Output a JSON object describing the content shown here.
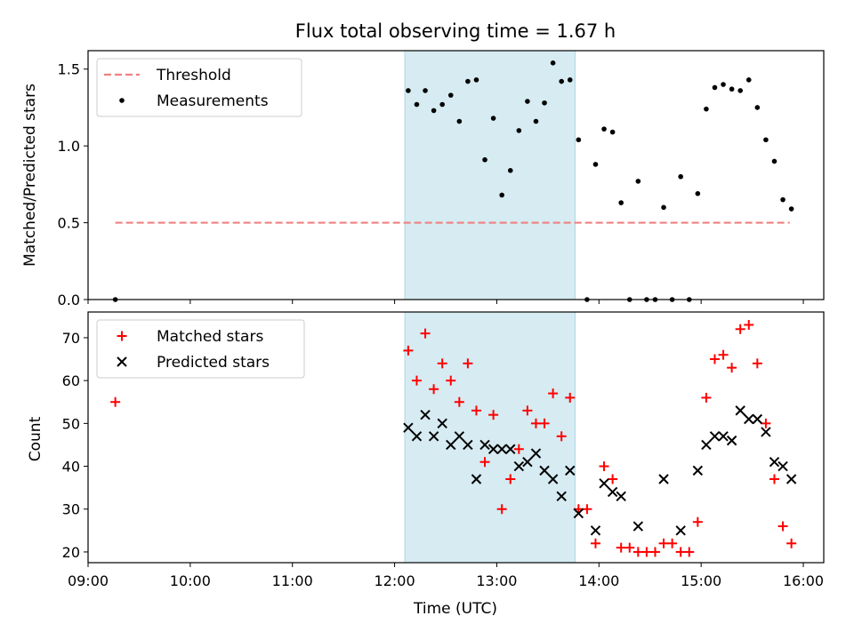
{
  "figure": {
    "title": "Flux total observing time = 1.67 h"
  },
  "colors": {
    "threshold": "#f08080",
    "measurement": "#000000",
    "matched": "#ff0000",
    "predicted": "#000000",
    "shade": "#add8e6"
  },
  "chart_data": [
    {
      "type": "scatter",
      "ylabel": "Matched/Predicted stars",
      "xlabel": "",
      "ylim": [
        0,
        1.62
      ],
      "yticks": [
        0.0,
        0.5,
        1.0,
        1.5
      ],
      "ytick_labels": [
        "0.0",
        "0.5",
        "1.0",
        "1.5"
      ],
      "legend": {
        "placement": "top-left",
        "entries": [
          "Threshold",
          "Measurements"
        ]
      },
      "shaded_interval": [
        "12:06",
        "13:46"
      ],
      "threshold": {
        "name": "Threshold",
        "y": 0.5,
        "x_start": "09:16",
        "x_end": "15:52",
        "style": "dashed"
      },
      "series": [
        {
          "name": "Measurements",
          "marker": "dot",
          "points": [
            [
              "09:16",
              0.0
            ],
            [
              "12:08",
              1.36
            ],
            [
              "12:13",
              1.27
            ],
            [
              "12:18",
              1.36
            ],
            [
              "12:23",
              1.23
            ],
            [
              "12:28",
              1.27
            ],
            [
              "12:33",
              1.33
            ],
            [
              "12:38",
              1.16
            ],
            [
              "12:43",
              1.42
            ],
            [
              "12:48",
              1.43
            ],
            [
              "12:53",
              0.91
            ],
            [
              "12:58",
              1.18
            ],
            [
              "13:03",
              0.68
            ],
            [
              "13:08",
              0.84
            ],
            [
              "13:13",
              1.1
            ],
            [
              "13:18",
              1.29
            ],
            [
              "13:23",
              1.16
            ],
            [
              "13:28",
              1.28
            ],
            [
              "13:33",
              1.54
            ],
            [
              "13:38",
              1.42
            ],
            [
              "13:43",
              1.43
            ],
            [
              "13:48",
              1.04
            ],
            [
              "13:53",
              0.0
            ],
            [
              "13:58",
              0.88
            ],
            [
              "14:03",
              1.11
            ],
            [
              "14:08",
              1.09
            ],
            [
              "14:13",
              0.63
            ],
            [
              "14:18",
              0.0
            ],
            [
              "14:23",
              0.77
            ],
            [
              "14:28",
              0.0
            ],
            [
              "14:33",
              0.0
            ],
            [
              "14:38",
              0.6
            ],
            [
              "14:43",
              0.0
            ],
            [
              "14:48",
              0.8
            ],
            [
              "14:53",
              0.0
            ],
            [
              "14:58",
              0.69
            ],
            [
              "15:03",
              1.24
            ],
            [
              "15:08",
              1.38
            ],
            [
              "15:13",
              1.4
            ],
            [
              "15:18",
              1.37
            ],
            [
              "15:23",
              1.36
            ],
            [
              "15:28",
              1.43
            ],
            [
              "15:33",
              1.25
            ],
            [
              "15:38",
              1.04
            ],
            [
              "15:43",
              0.9
            ],
            [
              "15:48",
              0.65
            ],
            [
              "15:53",
              0.59
            ]
          ]
        }
      ]
    },
    {
      "type": "scatter",
      "ylabel": "Count",
      "xlabel": "Time (UTC)",
      "ylim": [
        17.5,
        76
      ],
      "yticks": [
        20,
        30,
        40,
        50,
        60,
        70
      ],
      "ytick_labels": [
        "20",
        "30",
        "40",
        "50",
        "60",
        "70"
      ],
      "xlim": [
        "09:00",
        "16:12"
      ],
      "xticks": [
        "09:00",
        "10:00",
        "11:00",
        "12:00",
        "13:00",
        "14:00",
        "15:00",
        "16:00"
      ],
      "xtick_labels": [
        "09:00",
        "10:00",
        "11:00",
        "12:00",
        "13:00",
        "14:00",
        "15:00",
        "16:00"
      ],
      "legend": {
        "placement": "top-left",
        "entries": [
          "Matched stars",
          "Predicted stars"
        ]
      },
      "shaded_interval": [
        "12:06",
        "13:46"
      ],
      "series": [
        {
          "name": "Matched stars",
          "marker": "plus",
          "points": [
            [
              "09:16",
              55
            ],
            [
              "12:08",
              67
            ],
            [
              "12:13",
              60
            ],
            [
              "12:18",
              71
            ],
            [
              "12:23",
              58
            ],
            [
              "12:28",
              64
            ],
            [
              "12:33",
              60
            ],
            [
              "12:38",
              55
            ],
            [
              "12:43",
              64
            ],
            [
              "12:48",
              53
            ],
            [
              "12:53",
              41
            ],
            [
              "12:58",
              52
            ],
            [
              "13:03",
              30
            ],
            [
              "13:08",
              37
            ],
            [
              "13:13",
              44
            ],
            [
              "13:18",
              53
            ],
            [
              "13:23",
              50
            ],
            [
              "13:28",
              50
            ],
            [
              "13:33",
              57
            ],
            [
              "13:38",
              47
            ],
            [
              "13:43",
              56
            ],
            [
              "13:48",
              30
            ],
            [
              "13:53",
              30
            ],
            [
              "13:58",
              22
            ],
            [
              "14:03",
              40
            ],
            [
              "14:08",
              37
            ],
            [
              "14:13",
              21
            ],
            [
              "14:18",
              21
            ],
            [
              "14:23",
              20
            ],
            [
              "14:28",
              20
            ],
            [
              "14:33",
              20
            ],
            [
              "14:38",
              22
            ],
            [
              "14:43",
              22
            ],
            [
              "14:48",
              20
            ],
            [
              "14:53",
              20
            ],
            [
              "14:58",
              27
            ],
            [
              "15:03",
              56
            ],
            [
              "15:08",
              65
            ],
            [
              "15:13",
              66
            ],
            [
              "15:18",
              63
            ],
            [
              "15:23",
              72
            ],
            [
              "15:28",
              73
            ],
            [
              "15:33",
              64
            ],
            [
              "15:38",
              50
            ],
            [
              "15:43",
              37
            ],
            [
              "15:48",
              26
            ],
            [
              "15:53",
              22
            ]
          ]
        },
        {
          "name": "Predicted stars",
          "marker": "x",
          "points": [
            [
              "12:08",
              49
            ],
            [
              "12:13",
              47
            ],
            [
              "12:18",
              52
            ],
            [
              "12:23",
              47
            ],
            [
              "12:28",
              50
            ],
            [
              "12:33",
              45
            ],
            [
              "12:38",
              47
            ],
            [
              "12:43",
              45
            ],
            [
              "12:48",
              37
            ],
            [
              "12:53",
              45
            ],
            [
              "12:58",
              44
            ],
            [
              "13:03",
              44
            ],
            [
              "13:08",
              44
            ],
            [
              "13:13",
              40
            ],
            [
              "13:18",
              41
            ],
            [
              "13:23",
              43
            ],
            [
              "13:28",
              39
            ],
            [
              "13:33",
              37
            ],
            [
              "13:38",
              33
            ],
            [
              "13:43",
              39
            ],
            [
              "13:48",
              29
            ],
            [
              "13:58",
              25
            ],
            [
              "14:03",
              36
            ],
            [
              "14:08",
              34
            ],
            [
              "14:13",
              33
            ],
            [
              "14:23",
              26
            ],
            [
              "14:38",
              37
            ],
            [
              "14:48",
              25
            ],
            [
              "14:58",
              39
            ],
            [
              "15:03",
              45
            ],
            [
              "15:08",
              47
            ],
            [
              "15:13",
              47
            ],
            [
              "15:18",
              46
            ],
            [
              "15:23",
              53
            ],
            [
              "15:28",
              51
            ],
            [
              "15:33",
              51
            ],
            [
              "15:38",
              48
            ],
            [
              "15:43",
              41
            ],
            [
              "15:48",
              40
            ],
            [
              "15:53",
              37
            ]
          ]
        }
      ]
    }
  ]
}
